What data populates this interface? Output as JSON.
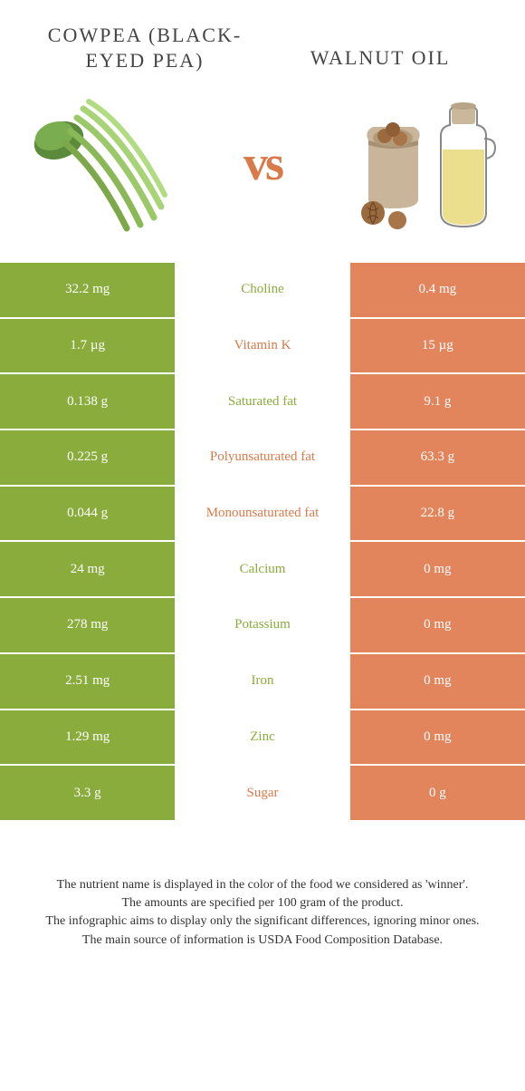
{
  "foods": {
    "left": {
      "name": "Cowpea (Black-Eyed Pea)",
      "color": "#8aac3c"
    },
    "right": {
      "name": "Walnut oil",
      "color": "#e2845c"
    }
  },
  "vs_text": "vs",
  "vs_color": "#d87a4a",
  "table": {
    "row_height": 61.7,
    "left_bg": "#8aac3c",
    "right_bg": "#e2845c",
    "left_text_color": "#ffffff",
    "right_text_color": "#ffffff",
    "label_color_left": "#8aac3c",
    "label_color_right": "#d87a4a",
    "rows": [
      {
        "label": "Choline",
        "left": "32.2 mg",
        "right": "0.4 mg",
        "winner": "left"
      },
      {
        "label": "Vitamin K",
        "left": "1.7 µg",
        "right": "15 µg",
        "winner": "right"
      },
      {
        "label": "Saturated fat",
        "left": "0.138 g",
        "right": "9.1 g",
        "winner": "left"
      },
      {
        "label": "Polyunsaturated fat",
        "left": "0.225 g",
        "right": "63.3 g",
        "winner": "right"
      },
      {
        "label": "Monounsaturated fat",
        "left": "0.044 g",
        "right": "22.8 g",
        "winner": "right"
      },
      {
        "label": "Calcium",
        "left": "24 mg",
        "right": "0 mg",
        "winner": "left"
      },
      {
        "label": "Potassium",
        "left": "278 mg",
        "right": "0 mg",
        "winner": "left"
      },
      {
        "label": "Iron",
        "left": "2.51 mg",
        "right": "0 mg",
        "winner": "left"
      },
      {
        "label": "Zinc",
        "left": "1.29 mg",
        "right": "0 mg",
        "winner": "left"
      },
      {
        "label": "Sugar",
        "left": "3.3 g",
        "right": "0 g",
        "winner": "right"
      }
    ]
  },
  "footnotes": [
    "The nutrient name is displayed in the color of the food we considered as 'winner'.",
    "The amounts are specified per 100 gram of the product.",
    "The infographic aims to display only the significant differences, ignoring minor ones.",
    "The main source of information is USDA Food Composition Database."
  ]
}
